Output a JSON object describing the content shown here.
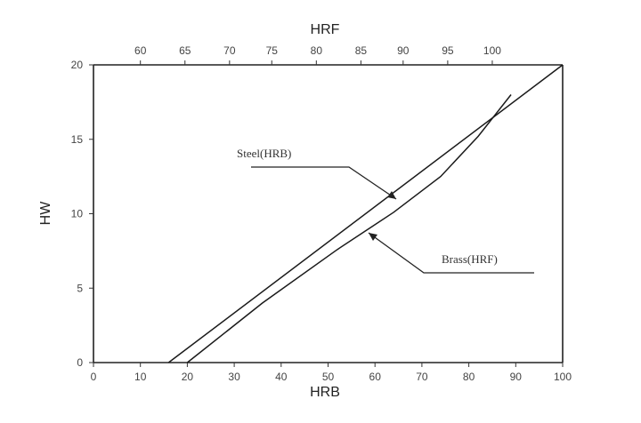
{
  "chart_data": {
    "type": "line",
    "title": "",
    "xlabel": "HRB",
    "ylabel": "HW",
    "top_axis_label": "HRF",
    "xlim": [
      0,
      100
    ],
    "ylim": [
      0,
      20
    ],
    "x_ticks": [
      0,
      10,
      20,
      30,
      40,
      50,
      60,
      70,
      80,
      90,
      100
    ],
    "y_ticks": [
      0,
      5,
      10,
      15,
      20
    ],
    "top_ticks": [
      {
        "label": "60",
        "hrb": 10
      },
      {
        "label": "65",
        "hrb": 19.5
      },
      {
        "label": "70",
        "hrb": 29
      },
      {
        "label": "75",
        "hrb": 38
      },
      {
        "label": "80",
        "hrb": 47.5
      },
      {
        "label": "85",
        "hrb": 57
      },
      {
        "label": "90",
        "hrb": 66
      },
      {
        "label": "95",
        "hrb": 75.5
      },
      {
        "label": "100",
        "hrb": 85
      }
    ],
    "grid": false,
    "series": [
      {
        "name": "Steel(HRB)",
        "x": [
          16,
          100
        ],
        "y": [
          0,
          20
        ]
      },
      {
        "name": "Brass(HRF)",
        "x": [
          20,
          36,
          52,
          64,
          74,
          82,
          89
        ],
        "y": [
          0,
          4,
          7.6,
          10.1,
          12.5,
          15.2,
          18
        ]
      }
    ],
    "annotations": [
      {
        "text": "Steel(HRB)",
        "series": 0
      },
      {
        "text": "Brass(HRF)",
        "series": 1
      }
    ]
  }
}
